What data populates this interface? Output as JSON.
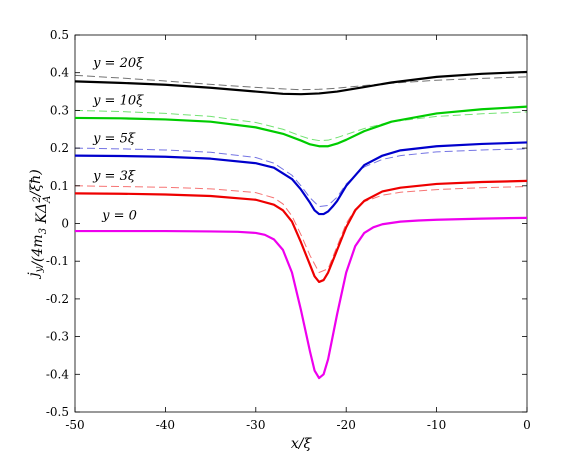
{
  "chart_data": {
    "type": "line",
    "xlabel": "x/ξ",
    "ylabel": "j_y/(4m_3 K Δ_A^2/ξħ)",
    "xlim": [
      -50,
      0
    ],
    "ylim": [
      -0.5,
      0.5
    ],
    "xticks": [
      "-50",
      "-40",
      "-30",
      "-20",
      "-10",
      "0"
    ],
    "yticks": [
      "-0.5",
      "-0.4",
      "-0.3",
      "-0.2",
      "-0.1",
      "0",
      "0.1",
      "0.2",
      "0.3",
      "0.4",
      "0.5"
    ],
    "grid": false,
    "series": [
      {
        "name": "y = 20ξ",
        "color": "#000000",
        "solid": {
          "x": [
            -50,
            -45,
            -40,
            -35,
            -30,
            -27,
            -25,
            -23,
            -21,
            -18,
            -15,
            -10,
            -5,
            0
          ],
          "y": [
            0.377,
            0.373,
            0.368,
            0.36,
            0.35,
            0.344,
            0.343,
            0.345,
            0.35,
            0.362,
            0.374,
            0.389,
            0.397,
            0.402
          ]
        },
        "dashed": {
          "x": [
            -50,
            -45,
            -40,
            -35,
            -30,
            -27,
            -25,
            -23,
            -21,
            -18,
            -15,
            -10,
            -5,
            0
          ],
          "y": [
            0.393,
            0.386,
            0.378,
            0.369,
            0.361,
            0.357,
            0.355,
            0.356,
            0.359,
            0.366,
            0.372,
            0.38,
            0.385,
            0.389
          ]
        }
      },
      {
        "name": "y = 10ξ",
        "color": "#00cc00",
        "solid": {
          "x": [
            -50,
            -45,
            -40,
            -35,
            -30,
            -27,
            -25,
            -24,
            -23,
            -22,
            -21,
            -20,
            -18,
            -15,
            -10,
            -5,
            0
          ],
          "y": [
            0.28,
            0.279,
            0.276,
            0.27,
            0.255,
            0.238,
            0.22,
            0.21,
            0.205,
            0.205,
            0.212,
            0.222,
            0.245,
            0.27,
            0.292,
            0.303,
            0.31
          ]
        },
        "dashed": {
          "x": [
            -50,
            -45,
            -40,
            -35,
            -30,
            -27,
            -25,
            -24,
            -23,
            -22,
            -21,
            -20,
            -18,
            -15,
            -10,
            -5,
            0
          ],
          "y": [
            0.3,
            0.297,
            0.292,
            0.284,
            0.268,
            0.25,
            0.232,
            0.224,
            0.22,
            0.221,
            0.228,
            0.236,
            0.252,
            0.27,
            0.284,
            0.291,
            0.296
          ]
        }
      },
      {
        "name": "y = 5ξ",
        "color": "#0000cc",
        "solid": {
          "x": [
            -50,
            -45,
            -40,
            -35,
            -30,
            -28,
            -26,
            -25,
            -24,
            -23.5,
            -23,
            -22.5,
            -22,
            -21.5,
            -21,
            -20,
            -18,
            -16,
            -14,
            -10,
            -5,
            0
          ],
          "y": [
            0.18,
            0.179,
            0.177,
            0.172,
            0.16,
            0.148,
            0.118,
            0.09,
            0.055,
            0.035,
            0.025,
            0.025,
            0.032,
            0.045,
            0.06,
            0.1,
            0.155,
            0.18,
            0.194,
            0.205,
            0.211,
            0.215
          ]
        },
        "dashed": {
          "x": [
            -50,
            -45,
            -40,
            -35,
            -30,
            -28,
            -26,
            -25,
            -24,
            -23,
            -22,
            -21,
            -20,
            -18,
            -16,
            -14,
            -10,
            -5,
            0
          ],
          "y": [
            0.2,
            0.198,
            0.195,
            0.189,
            0.175,
            0.16,
            0.128,
            0.1,
            0.068,
            0.045,
            0.048,
            0.07,
            0.105,
            0.15,
            0.17,
            0.18,
            0.19,
            0.195,
            0.198
          ]
        }
      },
      {
        "name": "y = 3ξ",
        "color": "#ee0000",
        "solid": {
          "x": [
            -50,
            -45,
            -40,
            -35,
            -30,
            -28,
            -27,
            -26,
            -25,
            -24,
            -23.5,
            -23,
            -22.5,
            -22,
            -21.5,
            -21,
            -20,
            -19,
            -18,
            -16,
            -14,
            -10,
            -5,
            0
          ],
          "y": [
            0.08,
            0.079,
            0.077,
            0.073,
            0.063,
            0.05,
            0.035,
            0.005,
            -0.05,
            -0.11,
            -0.14,
            -0.155,
            -0.15,
            -0.13,
            -0.1,
            -0.07,
            -0.01,
            0.035,
            0.06,
            0.085,
            0.095,
            0.105,
            0.11,
            0.113
          ]
        },
        "dashed": {
          "x": [
            -50,
            -45,
            -40,
            -35,
            -30,
            -28,
            -27,
            -26,
            -25,
            -24,
            -23,
            -22,
            -21,
            -20,
            -19,
            -18,
            -16,
            -14,
            -10,
            -5,
            0
          ],
          "y": [
            0.1,
            0.098,
            0.096,
            0.092,
            0.082,
            0.068,
            0.052,
            0.02,
            -0.03,
            -0.085,
            -0.13,
            -0.12,
            -0.06,
            0.0,
            0.038,
            0.058,
            0.075,
            0.083,
            0.09,
            0.095,
            0.098
          ]
        }
      },
      {
        "name": "y = 0",
        "color": "#ee00ee",
        "solid": {
          "x": [
            -50,
            -45,
            -40,
            -35,
            -32,
            -30,
            -29,
            -28,
            -27,
            -26,
            -25,
            -24,
            -23.5,
            -23,
            -22.5,
            -22,
            -21.5,
            -21,
            -20,
            -19,
            -18,
            -17,
            -16,
            -14,
            -12,
            -10,
            -5,
            0
          ],
          "y": [
            -0.02,
            -0.02,
            -0.02,
            -0.021,
            -0.022,
            -0.025,
            -0.03,
            -0.042,
            -0.07,
            -0.13,
            -0.23,
            -0.34,
            -0.39,
            -0.41,
            -0.4,
            -0.36,
            -0.3,
            -0.24,
            -0.13,
            -0.06,
            -0.025,
            -0.01,
            -0.002,
            0.005,
            0.008,
            0.01,
            0.013,
            0.015
          ]
        }
      }
    ],
    "annotations": [
      "y = 20ξ",
      "y = 10ξ",
      "y = 5ξ",
      "y = 3ξ",
      "y = 0"
    ]
  }
}
